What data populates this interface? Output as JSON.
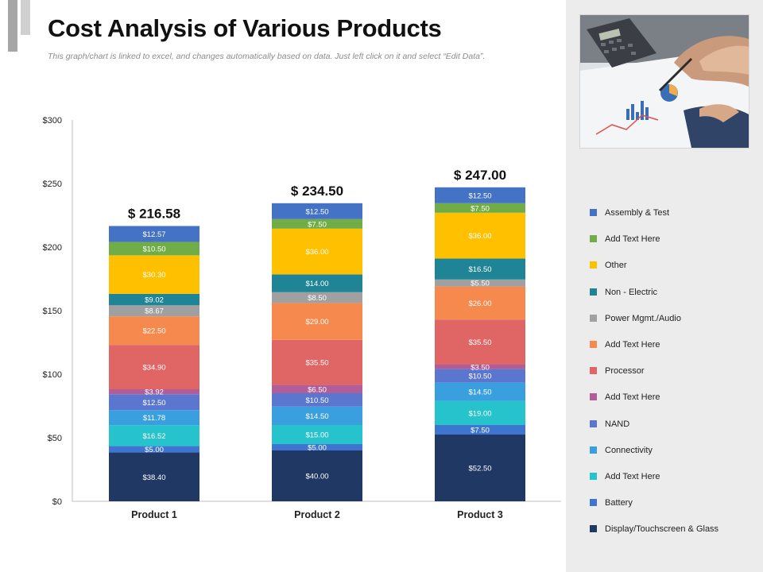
{
  "header": {
    "title": "Cost Analysis of Various Products",
    "subtitle": "This graph/chart is linked to excel, and changes automatically based on data. Just left click on it and select “Edit Data”."
  },
  "chart_data": {
    "type": "bar",
    "stacked": true,
    "categories": [
      "Product 1",
      "Product 2",
      "Product 3"
    ],
    "totals": [
      216.58,
      234.5,
      247.0
    ],
    "total_labels": [
      "$ 216.58",
      "$ 234.50",
      "$ 247.00"
    ],
    "ylim": [
      0,
      300
    ],
    "yticks": [
      0,
      50,
      100,
      150,
      200,
      250,
      300
    ],
    "ytick_labels": [
      "$0",
      "$50",
      "$100",
      "$150",
      "$200",
      "$250",
      "$300"
    ],
    "series": [
      {
        "name": "Display/Touchscreen & Glass",
        "color": "#203864",
        "values": [
          38.4,
          40.0,
          52.5
        ],
        "labels": [
          "$38.40",
          "$40.00",
          "$52.50"
        ]
      },
      {
        "name": "Battery",
        "color": "#3f75d1",
        "values": [
          5.0,
          5.0,
          7.5
        ],
        "labels": [
          "$5.00",
          "$5.00",
          "$7.50"
        ]
      },
      {
        "name": "Add Text Here",
        "color": "#27c3cc",
        "values": [
          16.52,
          15.0,
          19.0
        ],
        "labels": [
          "$16.52",
          "$15.00",
          "$19.00"
        ]
      },
      {
        "name": "Connectivity",
        "color": "#3a9fdf",
        "values": [
          11.78,
          14.5,
          14.5
        ],
        "labels": [
          "$11.78",
          "$14.50",
          "$14.50"
        ]
      },
      {
        "name": "NAND",
        "color": "#5b76cf",
        "values": [
          12.5,
          10.5,
          10.5
        ],
        "labels": [
          "$12.50",
          "$10.50",
          "$10.50"
        ]
      },
      {
        "name": "Add Text Here",
        "color": "#b05d9a",
        "values": [
          3.92,
          6.5,
          3.5
        ],
        "labels": [
          "$3.92",
          "$6.50",
          "$3.50"
        ]
      },
      {
        "name": "Processor",
        "color": "#e06666",
        "values": [
          34.9,
          35.5,
          35.5
        ],
        "labels": [
          "$34.90",
          "$35.50",
          "$35.50"
        ]
      },
      {
        "name": "Add Text Here",
        "color": "#f6894d",
        "values": [
          22.5,
          29.0,
          26.0
        ],
        "labels": [
          "$22.50",
          "$29.00",
          "$26.00"
        ]
      },
      {
        "name": "Power Mgmt./Audio",
        "color": "#a0a0a0",
        "values": [
          8.67,
          8.5,
          5.5
        ],
        "labels": [
          "$8.67",
          "$8.50",
          "$5.50"
        ]
      },
      {
        "name": "Non - Electric",
        "color": "#1f8596",
        "values": [
          9.02,
          14.0,
          16.5
        ],
        "labels": [
          "$9.02",
          "$14.00",
          "$16.50"
        ]
      },
      {
        "name": "Other",
        "color": "#ffc000",
        "values": [
          30.3,
          36.0,
          36.0
        ],
        "labels": [
          "$30.30",
          "$36.00",
          "$36.00"
        ]
      },
      {
        "name": "Add Text Here",
        "color": "#70ad47",
        "values": [
          10.5,
          7.5,
          7.5
        ],
        "labels": [
          "$10.50",
          "$7.50",
          "$7.50"
        ]
      },
      {
        "name": "Assembly & Test",
        "color": "#4472c4",
        "values": [
          12.57,
          12.5,
          12.5
        ],
        "labels": [
          "$12.57",
          "$12.50",
          "$12.50"
        ]
      }
    ]
  },
  "legend": {
    "items": [
      {
        "label": "Assembly & Test",
        "color": "#4472c4"
      },
      {
        "label": "Add Text Here",
        "color": "#70ad47"
      },
      {
        "label": "Other",
        "color": "#ffc000"
      },
      {
        "label": "Non - Electric",
        "color": "#1f8596"
      },
      {
        "label": "Power Mgmt./Audio",
        "color": "#a0a0a0"
      },
      {
        "label": "Add Text Here",
        "color": "#f6894d"
      },
      {
        "label": "Processor",
        "color": "#e06666"
      },
      {
        "label": "Add Text Here",
        "color": "#b05d9a"
      },
      {
        "label": "NAND",
        "color": "#5b76cf"
      },
      {
        "label": "Connectivity",
        "color": "#3a9fdf"
      },
      {
        "label": "Add Text Here",
        "color": "#27c3cc"
      },
      {
        "label": "Battery",
        "color": "#3f75d1"
      },
      {
        "label": "Display/Touchscreen & Glass",
        "color": "#203864"
      }
    ]
  },
  "photo": {
    "icon": "finance-analysis-photo"
  }
}
